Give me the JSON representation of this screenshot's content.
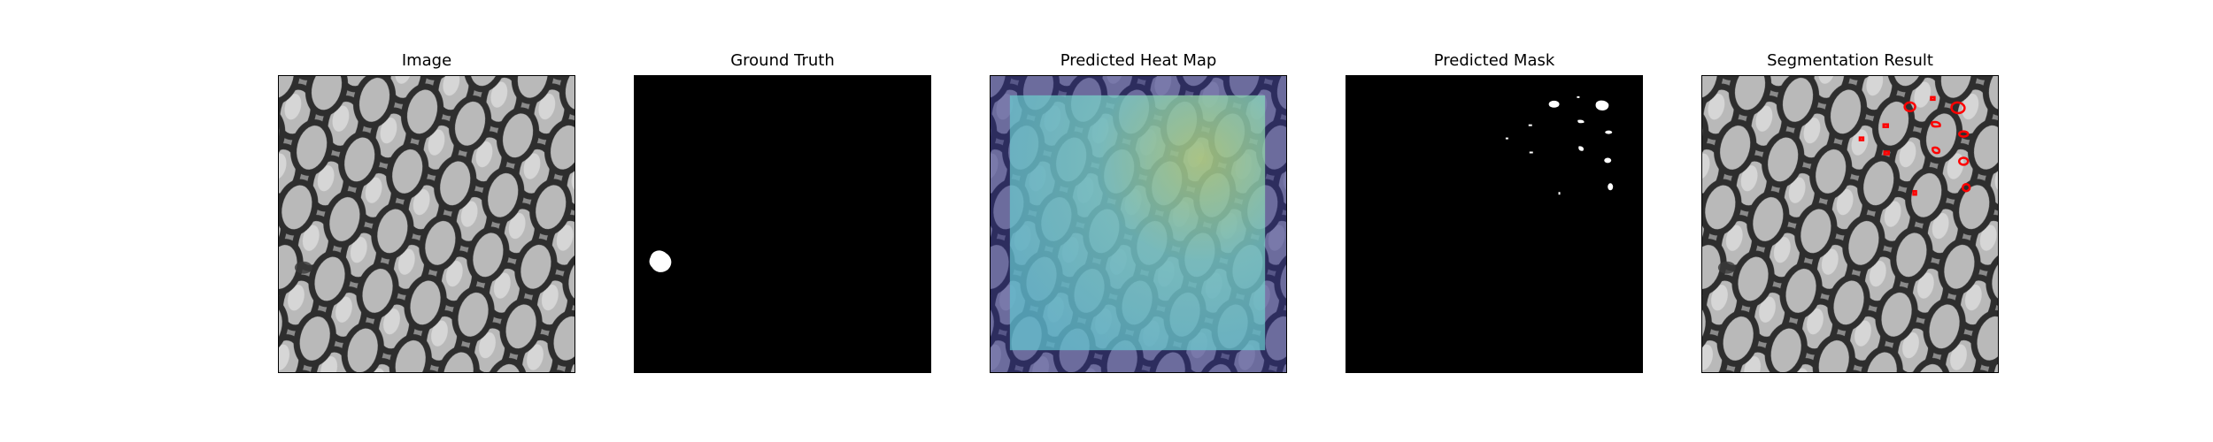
{
  "panels": [
    {
      "title": "Image"
    },
    {
      "title": "Ground Truth"
    },
    {
      "title": "Predicted Heat Map"
    },
    {
      "title": "Predicted Mask"
    },
    {
      "title": "Segmentation Result"
    }
  ],
  "colors": {
    "mask_background": "#000000",
    "mask_foreground": "#ffffff",
    "heatmap_low": "#3b3b8f",
    "heatmap_high": "#7fd6c8",
    "heatmap_peak": "#c8d96a",
    "contour": "#ff0000"
  }
}
